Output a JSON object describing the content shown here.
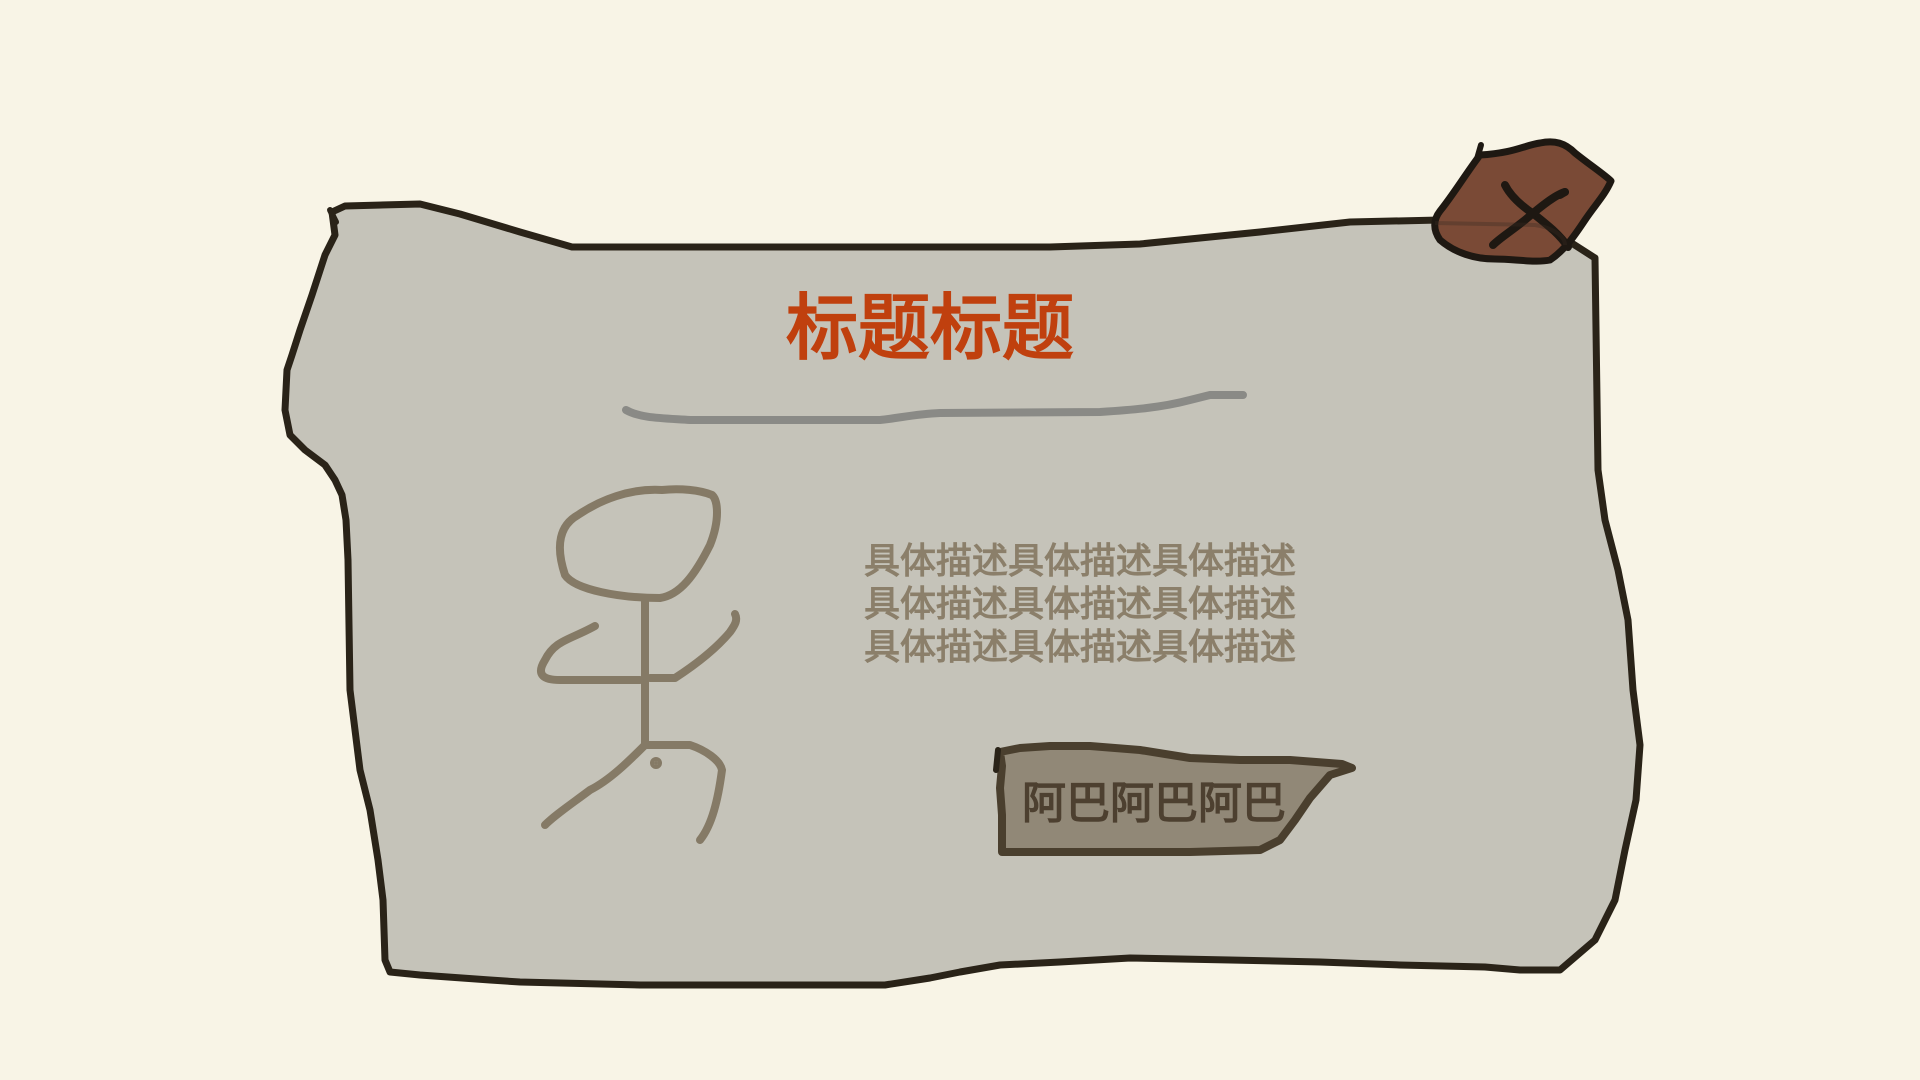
{
  "dialog": {
    "title": "标题标题",
    "description_lines": [
      "具体描述具体描述具体描述",
      "具体描述具体描述具体描述",
      "具体描述具体描述具体描述"
    ],
    "action_label": "阿巴阿巴阿巴"
  },
  "colors": {
    "background": "#f8f4e6",
    "panel_fill": "#c5c3b9",
    "outline": "#2a2318",
    "title": "#c0400e",
    "description": "#8b7f6a",
    "button_fill": "#918877",
    "close_fill": "#7a4a36",
    "figure_stroke": "#857a66"
  },
  "icons": {
    "close": "close-icon",
    "figure": "stick-figure-icon"
  }
}
